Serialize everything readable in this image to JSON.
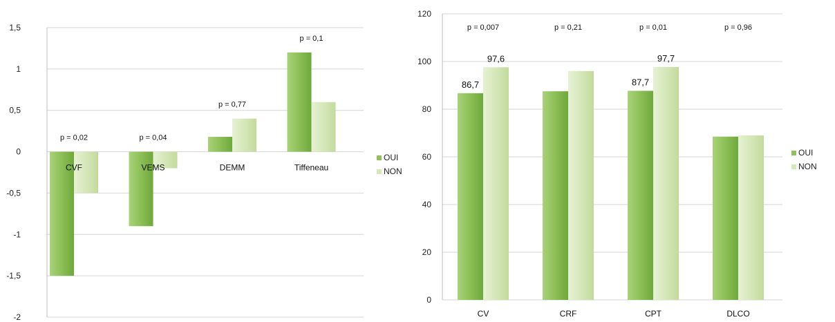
{
  "chart_data": [
    {
      "type": "bar",
      "categories": [
        "CVF",
        "VEMS",
        "DEMM",
        "Tiffeneau"
      ],
      "series": [
        {
          "name": "OUI",
          "values": [
            -1.5,
            -0.9,
            0.18,
            1.2
          ]
        },
        {
          "name": "NON",
          "values": [
            -0.5,
            -0.2,
            0.4,
            0.6
          ]
        }
      ],
      "annotations": [
        "p = 0,02",
        "p = 0,04",
        "p = 0,77",
        "p = 0,1"
      ],
      "ylim": [
        -2,
        1.5
      ],
      "yticks": [
        "1,5",
        "1",
        "0,5",
        "0",
        "-0,5",
        "-1",
        "-1,5",
        "-2"
      ],
      "ytick_values": [
        1.5,
        1,
        0.5,
        0,
        -0.5,
        -1,
        -1.5,
        -2
      ],
      "grid": true,
      "legend": "right",
      "colors": {
        "OUI": "#8fc05a",
        "NON": "#d6e8b8"
      }
    },
    {
      "type": "bar",
      "categories": [
        "CV",
        "CRF",
        "CPT",
        "DLCO"
      ],
      "series": [
        {
          "name": "OUI",
          "values": [
            86.7,
            87.5,
            87.7,
            68.5
          ],
          "labels": [
            "86,7",
            "",
            "87,7",
            ""
          ]
        },
        {
          "name": "NON",
          "values": [
            97.6,
            96,
            97.7,
            69
          ],
          "labels": [
            "97,6",
            "",
            "97,7",
            ""
          ]
        }
      ],
      "annotations": [
        "p = 0,007",
        "p = 0,21",
        "p = 0,01",
        "p = 0,96"
      ],
      "ylim": [
        0,
        120
      ],
      "yticks": [
        "120",
        "100",
        "80",
        "60",
        "40",
        "20",
        "0"
      ],
      "ytick_values": [
        120,
        100,
        80,
        60,
        40,
        20,
        0
      ],
      "grid": true,
      "legend": "right",
      "colors": {
        "OUI": "#8fc05a",
        "NON": "#d6e8b8"
      }
    }
  ]
}
